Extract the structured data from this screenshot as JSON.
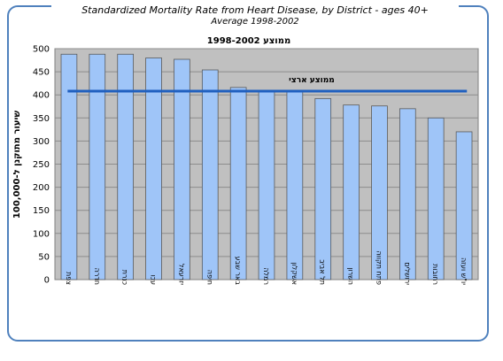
{
  "title": "Standardized Mortality Rate from Heart Disease,  by District - ages 40+",
  "subtitle": "Average 1998-2002",
  "chart_data": {
    "type": "bar",
    "title_hebrew": "ממוצע 1998-2002",
    "ylabel": "שיעור מתוקנן ל-100,000",
    "xlabel": "",
    "ylim": [
      0,
      500
    ],
    "yticks": [
      0,
      50,
      100,
      150,
      200,
      250,
      300,
      350,
      400,
      450,
      500
    ],
    "categories": [
      "צפת",
      "חדרה",
      "כנרת",
      "עכו",
      "יזרעאל",
      "חיפה",
      "באר שבע",
      "רמלה",
      "אשקלון",
      "תל אביב",
      "השרון",
      "פתח תקווה",
      "ירושלים",
      "רחובות",
      "יו\"ש ועזה"
    ],
    "values": [
      488,
      488,
      488,
      480,
      477,
      454,
      416,
      410,
      407,
      392,
      378,
      376,
      370,
      350,
      320
    ],
    "reference_line": {
      "label": "ממוצע ארצי",
      "value": 408
    },
    "bar_color": "#9fc5f8",
    "bar_border": "#5a5a5a",
    "reference_color": "#1f5fbf",
    "plot_background": "#c0c0c0",
    "grid": true,
    "legend": "none"
  }
}
